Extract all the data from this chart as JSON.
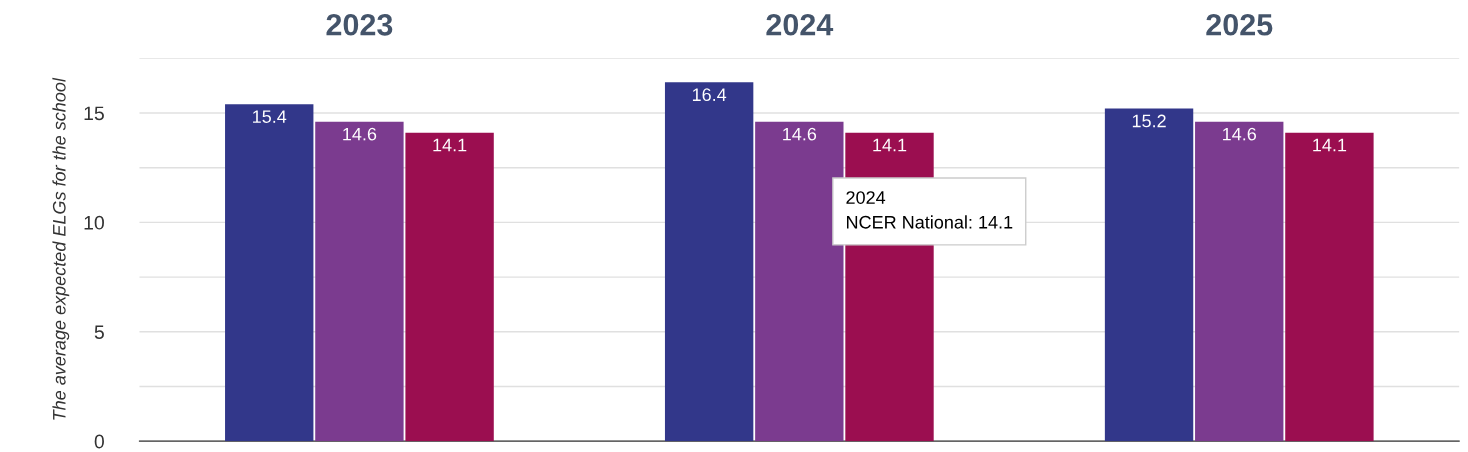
{
  "chart_data": {
    "type": "bar",
    "categories": [
      "2023",
      "2024",
      "2025"
    ],
    "series": [
      {
        "color": "#32378a",
        "values": [
          15.4,
          16.4,
          15.2
        ]
      },
      {
        "color": "#7b3b8f",
        "values": [
          14.6,
          14.6,
          14.6
        ]
      },
      {
        "color": "#9b0e50",
        "values": [
          14.1,
          14.1,
          14.1
        ]
      }
    ],
    "ylabel": "The average expected ELGs for the school",
    "ylim": [
      0,
      17.5
    ],
    "yticks": [
      0,
      {
        "value": 2.5,
        "label": null
      },
      5,
      {
        "value": 7.5,
        "label": null
      },
      10,
      {
        "value": 12.5,
        "label": null
      },
      15,
      {
        "value": 17.5,
        "label": null
      }
    ],
    "grid": "y",
    "data_labels": true,
    "annotations": [
      "2024\nNCER National: 14.1"
    ]
  }
}
